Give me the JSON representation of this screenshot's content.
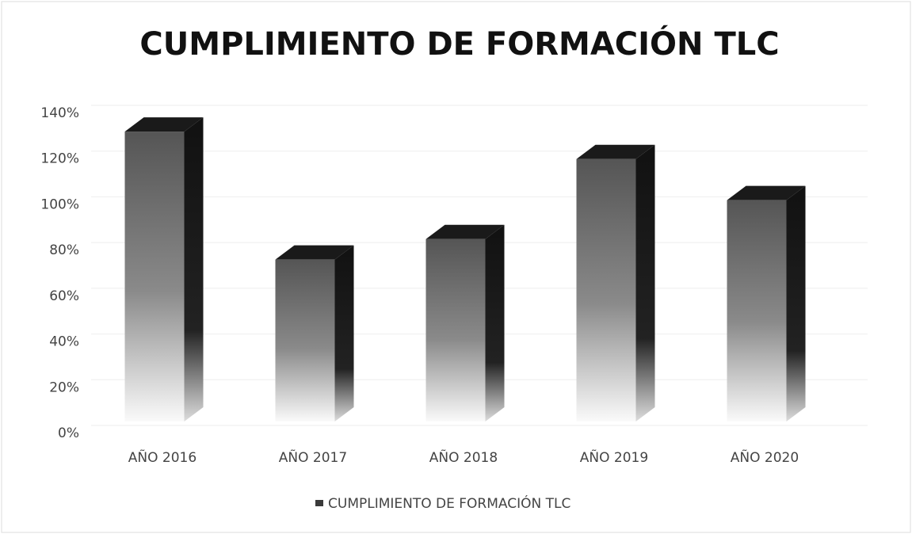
{
  "chart_data": {
    "type": "bar3d",
    "title": "CUMPLIMIENTO DE FORMACIÓN TLC",
    "categories": [
      "AÑO 2016",
      "AÑO 2017",
      "AÑO 2018",
      "AÑO 2019",
      "AÑO 2020"
    ],
    "series": [
      {
        "name": "CUMPLIMIENTO DE FORMACIÓN TLC",
        "color": "#3a3a3a",
        "values": [
          132,
          76,
          85,
          120,
          102
        ]
      }
    ],
    "ylim": [
      0,
      140
    ],
    "yticks": [
      {
        "value": 0,
        "label": "0%"
      },
      {
        "value": 20,
        "label": "20%"
      },
      {
        "value": 40,
        "label": "40%"
      },
      {
        "value": 60,
        "label": "60%"
      },
      {
        "value": 80,
        "label": "80%"
      },
      {
        "value": 100,
        "label": "100%"
      },
      {
        "value": 120,
        "label": "120%"
      },
      {
        "value": 140,
        "label": "140%"
      }
    ],
    "grid": true,
    "legend": "bottom"
  }
}
